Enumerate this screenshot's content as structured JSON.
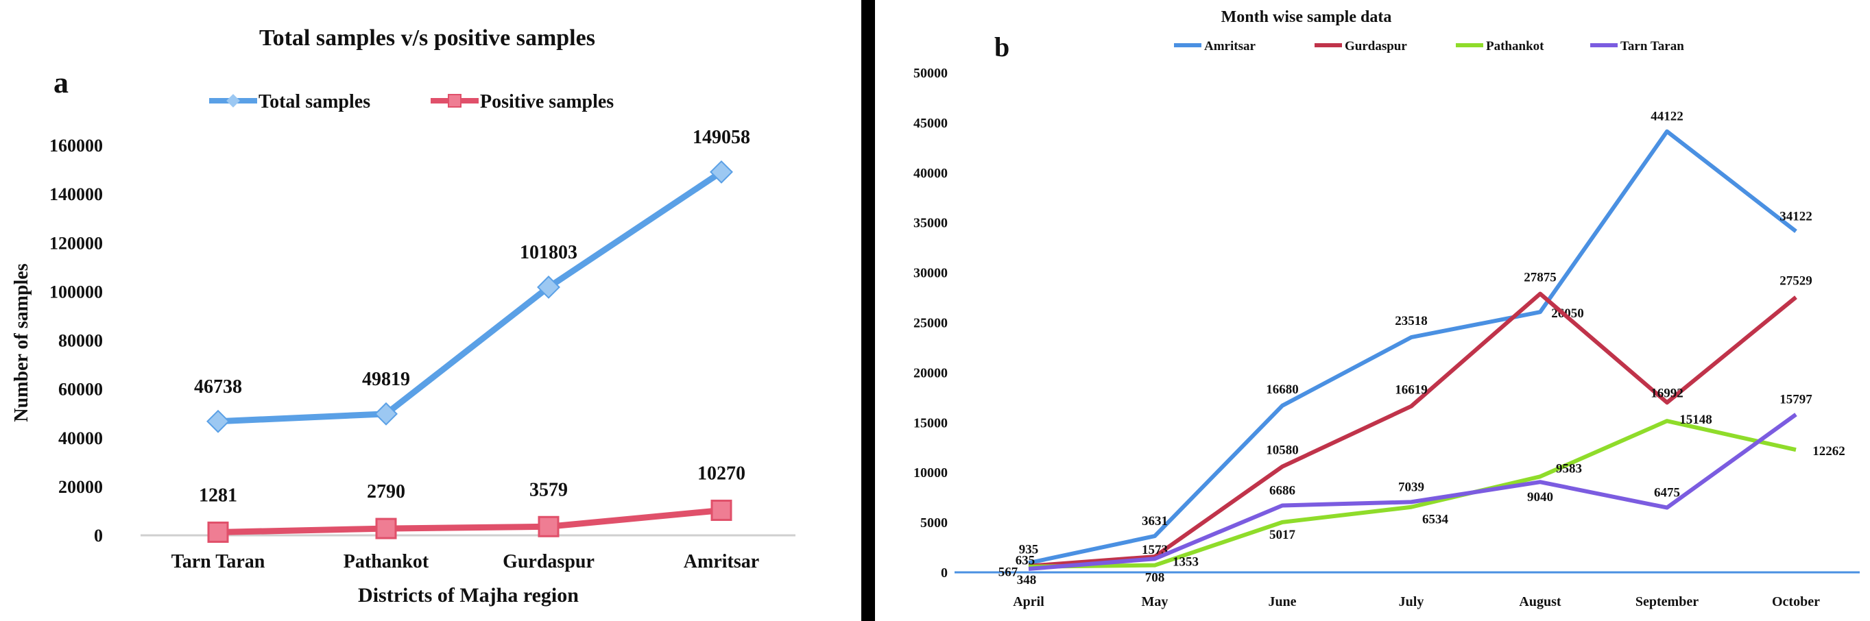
{
  "chart_data": [
    {
      "panel": "a",
      "type": "line",
      "title": "Total samples v/s positive samples",
      "xlabel": "Districts of Majha region",
      "ylabel": "Number of samples",
      "ylim": [
        0,
        160000
      ],
      "yticks": [
        0,
        20000,
        40000,
        60000,
        80000,
        100000,
        120000,
        140000,
        160000
      ],
      "categories": [
        "Tarn Taran",
        "Pathankot",
        "Gurdaspur",
        "Amritsar"
      ],
      "legend_position": "top",
      "grid": false,
      "series": [
        {
          "name": "Total samples",
          "color": "#5aa0e6",
          "marker": "diamond",
          "values": [
            46738,
            49819,
            101803,
            149058
          ]
        },
        {
          "name": "Positive samples",
          "color": "#e0506a",
          "marker": "square",
          "values": [
            1281,
            2790,
            3579,
            10270
          ]
        }
      ]
    },
    {
      "panel": "b",
      "type": "line",
      "title": "Month wise sample data",
      "xlabel": "",
      "ylabel": "",
      "ylim": [
        0,
        50000
      ],
      "yticks": [
        0,
        5000,
        10000,
        15000,
        20000,
        25000,
        30000,
        35000,
        40000,
        45000,
        50000
      ],
      "categories": [
        "April",
        "May",
        "June",
        "July",
        "August",
        "September",
        "October"
      ],
      "legend_position": "top",
      "grid": false,
      "series": [
        {
          "name": "Amritsar",
          "color": "#4a90e2",
          "values": [
            935,
            3631,
            16680,
            23518,
            26050,
            44122,
            34122
          ]
        },
        {
          "name": "Gurdaspur",
          "color": "#c0334a",
          "values": [
            635,
            1573,
            10580,
            16619,
            27875,
            16992,
            27529
          ]
        },
        {
          "name": "Pathankot",
          "color": "#8fdc2a",
          "values": [
            567,
            708,
            5017,
            6534,
            9583,
            15148,
            12262
          ]
        },
        {
          "name": "Tarn Taran",
          "color": "#7b5ce0",
          "values": [
            348,
            1353,
            6686,
            7039,
            9040,
            6475,
            15797
          ]
        }
      ]
    }
  ],
  "panel_labels": {
    "a": "a",
    "b": "b"
  }
}
